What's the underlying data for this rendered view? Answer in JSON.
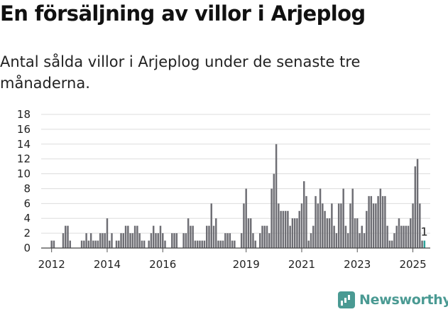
{
  "header": {
    "title": "En försäljning av villor i Arjeplog",
    "subtitle": "Antal sålda villor i Arjeplog under de senaste tre månaderna."
  },
  "brand": {
    "name": "Newsworthy",
    "color": "#4a9a93"
  },
  "chart_data": {
    "type": "bar",
    "title": "",
    "xlabel": "",
    "ylabel": "",
    "ylim": [
      0,
      18
    ],
    "yticks": [
      0,
      2,
      4,
      6,
      8,
      10,
      12,
      14,
      16,
      18
    ],
    "xticks": [
      "2012",
      "2014",
      "2016",
      "2019",
      "2021",
      "2023",
      "2025"
    ],
    "grid": true,
    "bar_color": "#6e6e74",
    "highlight_color": "#2aa198",
    "x_start": "2011-09",
    "x_end": "2025-09",
    "highlight": {
      "x": "2025-06",
      "value": 1,
      "label": "1"
    },
    "series": [
      {
        "values": [
          [
            "2012-01",
            1
          ],
          [
            "2012-02",
            1
          ],
          [
            "2012-06",
            2
          ],
          [
            "2012-07",
            3
          ],
          [
            "2012-08",
            3
          ],
          [
            "2012-09",
            1
          ],
          [
            "2013-02",
            1
          ],
          [
            "2013-03",
            1
          ],
          [
            "2013-04",
            2
          ],
          [
            "2013-05",
            1
          ],
          [
            "2013-06",
            2
          ],
          [
            "2013-07",
            1
          ],
          [
            "2013-08",
            1
          ],
          [
            "2013-09",
            1
          ],
          [
            "2013-10",
            2
          ],
          [
            "2013-11",
            2
          ],
          [
            "2013-12",
            2
          ],
          [
            "2014-01",
            4
          ],
          [
            "2014-02",
            1
          ],
          [
            "2014-03",
            2
          ],
          [
            "2014-05",
            1
          ],
          [
            "2014-06",
            1
          ],
          [
            "2014-07",
            2
          ],
          [
            "2014-08",
            2
          ],
          [
            "2014-09",
            3
          ],
          [
            "2014-10",
            3
          ],
          [
            "2014-11",
            2
          ],
          [
            "2014-12",
            2
          ],
          [
            "2015-01",
            3
          ],
          [
            "2015-02",
            3
          ],
          [
            "2015-03",
            2
          ],
          [
            "2015-04",
            1
          ],
          [
            "2015-05",
            1
          ],
          [
            "2015-07",
            1
          ],
          [
            "2015-08",
            2
          ],
          [
            "2015-09",
            3
          ],
          [
            "2015-10",
            2
          ],
          [
            "2015-11",
            2
          ],
          [
            "2015-12",
            3
          ],
          [
            "2016-01",
            2
          ],
          [
            "2016-02",
            1
          ],
          [
            "2016-05",
            2
          ],
          [
            "2016-06",
            2
          ],
          [
            "2016-07",
            2
          ],
          [
            "2016-10",
            2
          ],
          [
            "2016-11",
            2
          ],
          [
            "2016-12",
            4
          ],
          [
            "2017-01",
            3
          ],
          [
            "2017-02",
            3
          ],
          [
            "2017-03",
            1
          ],
          [
            "2017-04",
            1
          ],
          [
            "2017-05",
            1
          ],
          [
            "2017-06",
            1
          ],
          [
            "2017-07",
            1
          ],
          [
            "2017-08",
            3
          ],
          [
            "2017-09",
            3
          ],
          [
            "2017-10",
            6
          ],
          [
            "2017-11",
            3
          ],
          [
            "2017-12",
            4
          ],
          [
            "2018-01",
            1
          ],
          [
            "2018-02",
            1
          ],
          [
            "2018-03",
            1
          ],
          [
            "2018-04",
            2
          ],
          [
            "2018-05",
            2
          ],
          [
            "2018-06",
            2
          ],
          [
            "2018-07",
            1
          ],
          [
            "2018-08",
            1
          ],
          [
            "2018-11",
            2
          ],
          [
            "2018-12",
            6
          ],
          [
            "2019-01",
            8
          ],
          [
            "2019-02",
            4
          ],
          [
            "2019-03",
            4
          ],
          [
            "2019-04",
            2
          ],
          [
            "2019-05",
            1
          ],
          [
            "2019-07",
            2
          ],
          [
            "2019-08",
            3
          ],
          [
            "2019-09",
            3
          ],
          [
            "2019-10",
            3
          ],
          [
            "2019-11",
            2
          ],
          [
            "2019-12",
            8
          ],
          [
            "2020-01",
            10
          ],
          [
            "2020-02",
            14
          ],
          [
            "2020-03",
            6
          ],
          [
            "2020-04",
            5
          ],
          [
            "2020-05",
            5
          ],
          [
            "2020-06",
            5
          ],
          [
            "2020-07",
            5
          ],
          [
            "2020-08",
            3
          ],
          [
            "2020-09",
            4
          ],
          [
            "2020-10",
            4
          ],
          [
            "2020-11",
            4
          ],
          [
            "2020-12",
            5
          ],
          [
            "2021-01",
            6
          ],
          [
            "2021-02",
            9
          ],
          [
            "2021-03",
            7
          ],
          [
            "2021-04",
            1
          ],
          [
            "2021-05",
            2
          ],
          [
            "2021-06",
            3
          ],
          [
            "2021-07",
            7
          ],
          [
            "2021-08",
            6
          ],
          [
            "2021-09",
            8
          ],
          [
            "2021-10",
            6
          ],
          [
            "2021-11",
            5
          ],
          [
            "2021-12",
            4
          ],
          [
            "2022-01",
            4
          ],
          [
            "2022-02",
            6
          ],
          [
            "2022-03",
            3
          ],
          [
            "2022-04",
            2
          ],
          [
            "2022-05",
            6
          ],
          [
            "2022-06",
            6
          ],
          [
            "2022-07",
            8
          ],
          [
            "2022-08",
            3
          ],
          [
            "2022-09",
            2
          ],
          [
            "2022-10",
            6
          ],
          [
            "2022-11",
            8
          ],
          [
            "2022-12",
            4
          ],
          [
            "2023-01",
            4
          ],
          [
            "2023-02",
            2
          ],
          [
            "2023-03",
            3
          ],
          [
            "2023-04",
            2
          ],
          [
            "2023-05",
            5
          ],
          [
            "2023-06",
            7
          ],
          [
            "2023-07",
            7
          ],
          [
            "2023-08",
            6
          ],
          [
            "2023-09",
            6
          ],
          [
            "2023-10",
            7
          ],
          [
            "2023-11",
            8
          ],
          [
            "2023-12",
            7
          ],
          [
            "2024-01",
            7
          ],
          [
            "2024-02",
            3
          ],
          [
            "2024-03",
            1
          ],
          [
            "2024-04",
            1
          ],
          [
            "2024-05",
            2
          ],
          [
            "2024-06",
            3
          ],
          [
            "2024-07",
            4
          ],
          [
            "2024-08",
            3
          ],
          [
            "2024-09",
            3
          ],
          [
            "2024-10",
            3
          ],
          [
            "2024-11",
            3
          ],
          [
            "2024-12",
            4
          ],
          [
            "2025-01",
            6
          ],
          [
            "2025-02",
            11
          ],
          [
            "2025-03",
            12
          ],
          [
            "2025-04",
            6
          ],
          [
            "2025-05",
            1
          ]
        ]
      }
    ]
  }
}
